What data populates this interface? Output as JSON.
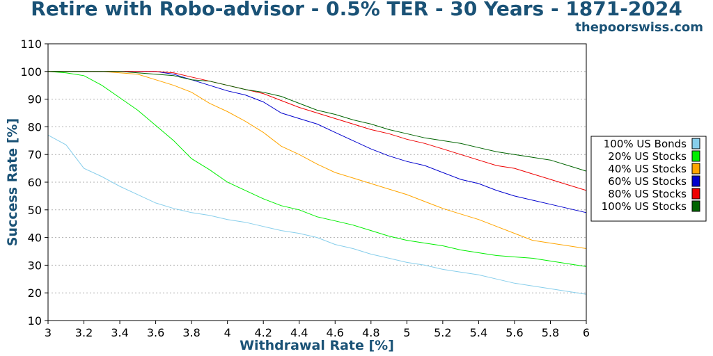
{
  "title": "Retire with Robo-advisor - 0.5% TER - 30 Years - 1871-2024",
  "source": "thepoorswiss.com",
  "chart_data": {
    "type": "line",
    "xlabel": "Withdrawal Rate [%]",
    "ylabel": "Success Rate [%]",
    "xlim": [
      3,
      6
    ],
    "ylim": [
      10,
      110
    ],
    "grid": "horizontal dotted",
    "legend_position": "right",
    "x_ticks": [
      "3",
      "3.2",
      "3.4",
      "3.6",
      "3.8",
      "4",
      "4.2",
      "4.4",
      "4.6",
      "4.8",
      "5",
      "5.2",
      "5.4",
      "5.6",
      "5.8",
      "6"
    ],
    "y_ticks": [
      "10",
      "20",
      "30",
      "40",
      "50",
      "60",
      "70",
      "80",
      "90",
      "100",
      "110"
    ],
    "x": [
      3.0,
      3.1,
      3.2,
      3.3,
      3.4,
      3.5,
      3.6,
      3.7,
      3.8,
      3.9,
      4.0,
      4.1,
      4.2,
      4.3,
      4.4,
      4.5,
      4.6,
      4.7,
      4.8,
      4.9,
      5.0,
      5.1,
      5.2,
      5.3,
      5.4,
      5.5,
      5.6,
      5.7,
      5.8,
      5.9,
      6.0
    ],
    "series": [
      {
        "name": "100% US Bonds",
        "color": "#87ceeb",
        "values": [
          77,
          73.5,
          65,
          62,
          58.5,
          55.5,
          52.5,
          50.5,
          49,
          48,
          46.5,
          45.5,
          44,
          42.5,
          41.5,
          40,
          37.5,
          36,
          34,
          32.5,
          31,
          30,
          28.5,
          27.5,
          26.5,
          25,
          23.5,
          22.5,
          21.5,
          20.5,
          19.5
        ]
      },
      {
        "name": "20% US Stocks",
        "color": "#00ee00",
        "values": [
          100,
          99.5,
          98.5,
          95,
          90.5,
          86,
          80.5,
          75,
          68.5,
          64.5,
          60,
          57,
          54,
          51.5,
          50,
          47.5,
          46,
          44.5,
          42.5,
          40.5,
          39,
          38,
          37,
          35.5,
          34.5,
          33.5,
          33,
          32.5,
          31.5,
          30.5,
          29.5
        ]
      },
      {
        "name": "40% US Stocks",
        "color": "#ffa500",
        "values": [
          100,
          100,
          100,
          100,
          99.5,
          99,
          97,
          95,
          92.5,
          88.5,
          85.5,
          82,
          78,
          73,
          70,
          66.5,
          63.5,
          61.5,
          59.5,
          57.5,
          55.5,
          53,
          50.5,
          48.5,
          46.5,
          44,
          41.5,
          39,
          38,
          37,
          36
        ]
      },
      {
        "name": "60% US Stocks",
        "color": "#0000cd",
        "values": [
          100,
          100,
          100,
          100,
          100,
          100,
          100,
          99,
          97,
          95,
          93,
          91.5,
          89,
          85,
          83,
          81,
          78,
          75,
          72,
          69.5,
          67.5,
          66,
          63.5,
          61,
          59.5,
          57,
          55,
          53.5,
          52,
          50.5,
          49
        ]
      },
      {
        "name": "80% US Stocks",
        "color": "#ee0000",
        "values": [
          100,
          100,
          100,
          100,
          100,
          100,
          100,
          99.5,
          98,
          96.5,
          95,
          93.5,
          92,
          89.5,
          87,
          85,
          83,
          81,
          79,
          77.5,
          75.5,
          74,
          72,
          70,
          68,
          66,
          65,
          63,
          61,
          59,
          57
        ]
      },
      {
        "name": "100% US Stocks",
        "color": "#006400",
        "values": [
          100,
          100,
          100,
          100,
          100,
          99.5,
          99,
          98.5,
          97,
          96.5,
          95,
          93.5,
          92.5,
          91,
          88.5,
          86,
          84.5,
          82.5,
          81,
          79,
          77.5,
          76,
          75,
          74,
          72.5,
          71,
          70,
          69,
          68,
          66,
          64
        ]
      }
    ]
  }
}
